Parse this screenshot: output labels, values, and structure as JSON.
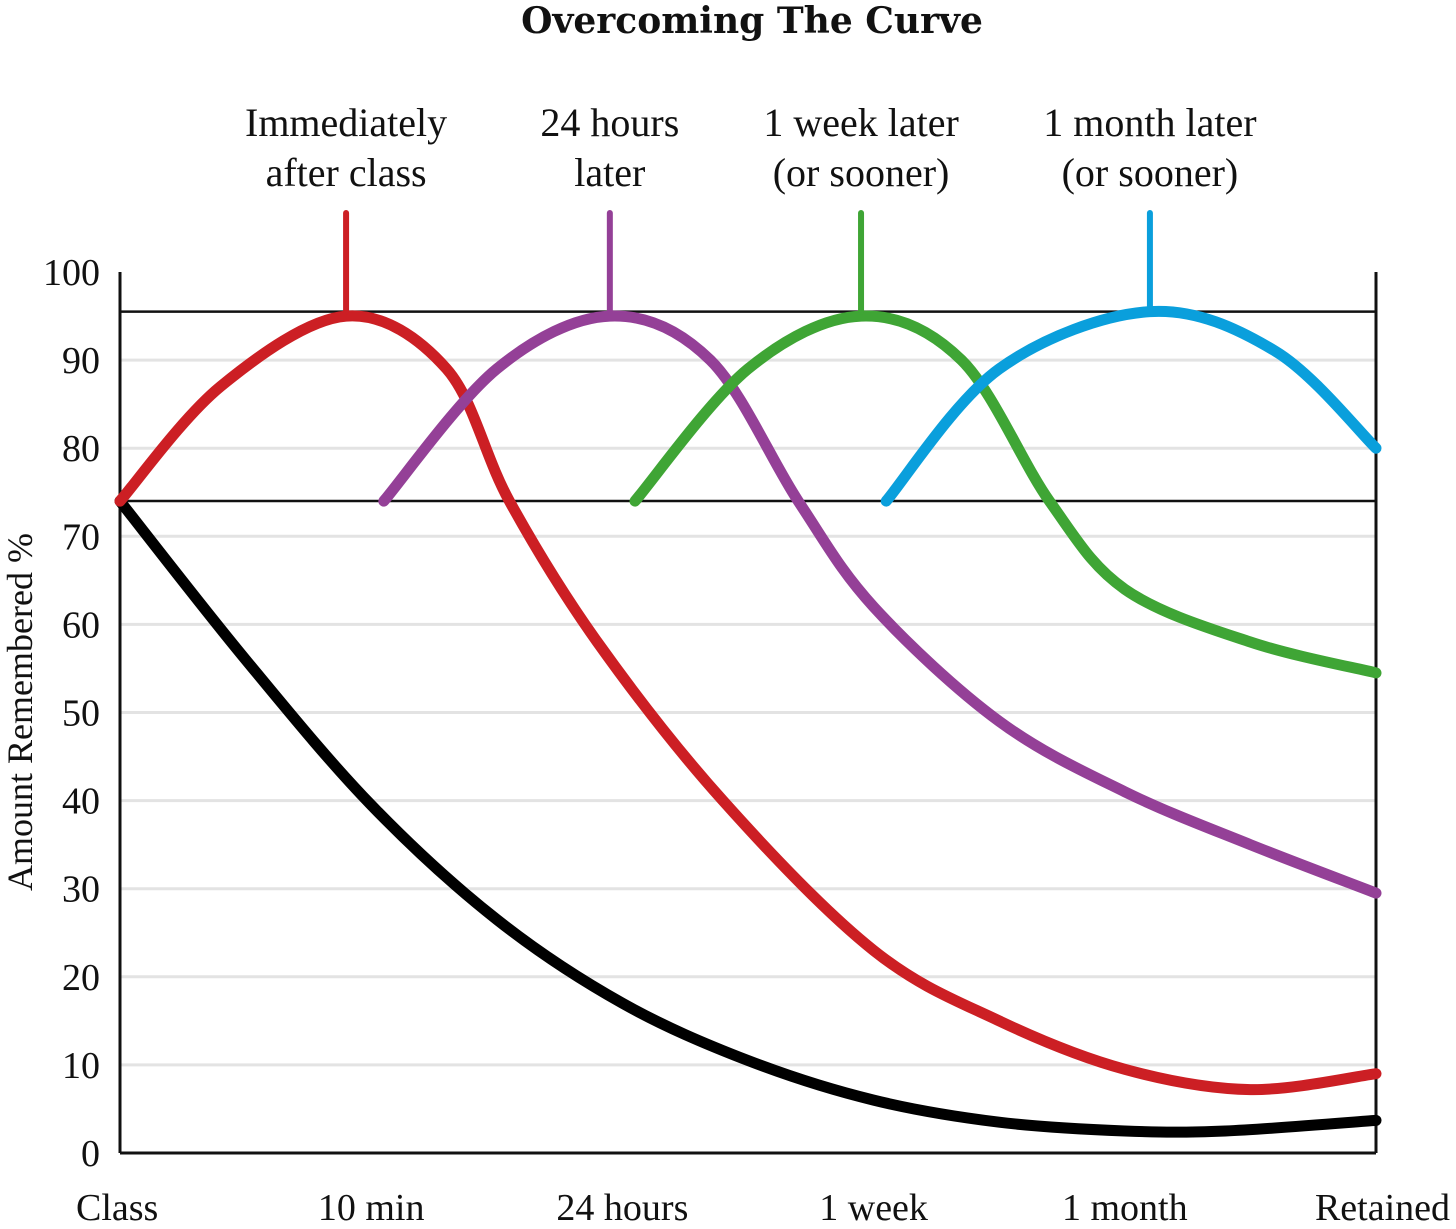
{
  "chart_data": {
    "type": "line",
    "title": "Overcoming The Curve",
    "xlabel": "",
    "ylabel": "Amount Remembered %",
    "categories": [
      "Class",
      "10 min",
      "24 hours",
      "1 week",
      "1 month",
      "Retained"
    ],
    "ylim": [
      0,
      100
    ],
    "yticks": [
      0,
      10,
      20,
      30,
      40,
      50,
      60,
      70,
      80,
      90,
      100
    ],
    "grid": true,
    "reference_lines": [
      95.5,
      74
    ],
    "colors": {
      "forgetting": "#000000",
      "review1": "#cc1f24",
      "review2": "#944097",
      "review3": "#3fa535",
      "review4": "#0a9fdc",
      "grid": "#e3e3e3"
    },
    "series": [
      {
        "name": "",
        "color_key": "forgetting",
        "points": [
          [
            0,
            74
          ],
          [
            0.5,
            56
          ],
          [
            1,
            39.5
          ],
          [
            1.5,
            26.5
          ],
          [
            2,
            17
          ],
          [
            2.5,
            10.5
          ],
          [
            3,
            6
          ],
          [
            3.5,
            3.5
          ],
          [
            4,
            2.5
          ],
          [
            4.4,
            2.5
          ],
          [
            5,
            3.7
          ]
        ]
      },
      {
        "name": "",
        "color_key": "review1",
        "points": [
          [
            0,
            74
          ],
          [
            0.4,
            87
          ],
          [
            0.9,
            95
          ],
          [
            1.3,
            89
          ],
          [
            1.55,
            74
          ],
          [
            1.9,
            58
          ],
          [
            2.4,
            40
          ],
          [
            3,
            23
          ],
          [
            3.5,
            15
          ],
          [
            4,
            9.5
          ],
          [
            4.5,
            7.2
          ],
          [
            5,
            9
          ]
        ]
      },
      {
        "name": "",
        "color_key": "review2",
        "points": [
          [
            1.05,
            74
          ],
          [
            1.5,
            89
          ],
          [
            1.95,
            95
          ],
          [
            2.35,
            90
          ],
          [
            2.7,
            74
          ],
          [
            3,
            62
          ],
          [
            3.5,
            49
          ],
          [
            4,
            41
          ],
          [
            4.5,
            35
          ],
          [
            5,
            29.5
          ]
        ]
      },
      {
        "name": "",
        "color_key": "review3",
        "points": [
          [
            2.05,
            74
          ],
          [
            2.5,
            89
          ],
          [
            2.95,
            95
          ],
          [
            3.35,
            90
          ],
          [
            3.7,
            74
          ],
          [
            4,
            64
          ],
          [
            4.5,
            58
          ],
          [
            5,
            54.5
          ]
        ]
      },
      {
        "name": "",
        "color_key": "review4",
        "points": [
          [
            3.05,
            74
          ],
          [
            3.5,
            89
          ],
          [
            4.1,
            95.5
          ],
          [
            4.6,
            91
          ],
          [
            5,
            80
          ]
        ]
      }
    ],
    "annotations": [
      {
        "lines": [
          "Immediately",
          "after class"
        ],
        "x": 0.9,
        "color_key": "review1"
      },
      {
        "lines": [
          "24 hours",
          "later"
        ],
        "x": 1.95,
        "color_key": "review2"
      },
      {
        "lines": [
          "1 week later",
          "(or sooner)"
        ],
        "x": 2.95,
        "color_key": "review3"
      },
      {
        "lines": [
          "1 month later",
          "(or sooner)"
        ],
        "x": 4.1,
        "color_key": "review4"
      }
    ]
  }
}
